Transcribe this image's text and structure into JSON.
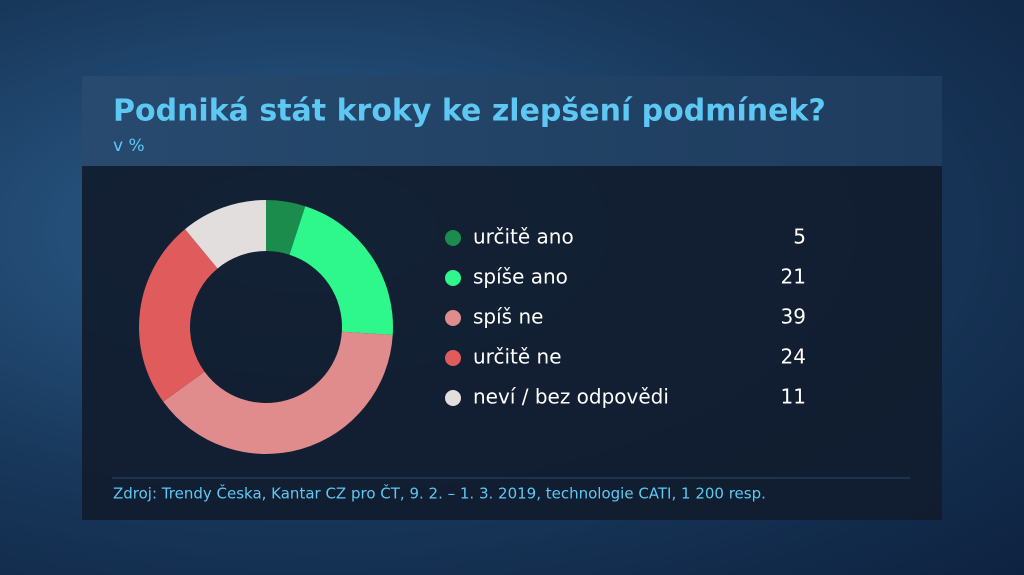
{
  "chart_data": {
    "type": "donut",
    "title": "Podniká stát kroky ke zlepšení podmínek?",
    "subtitle": "v %",
    "categories": [
      "určitě ano",
      "spíše ano",
      "spíš ne",
      "určitě ne",
      "neví / bez odpovědi"
    ],
    "values": [
      5,
      21,
      39,
      24,
      11
    ],
    "colors": [
      "#1b8c4c",
      "#2ef78c",
      "#e08c8c",
      "#e05c5c",
      "#e2dedd"
    ],
    "source": "Zdroj: Trendy Česka, Kantar CZ pro ČT, 9. 2. – 1. 3. 2019, technologie CATI, 1 200 resp."
  }
}
